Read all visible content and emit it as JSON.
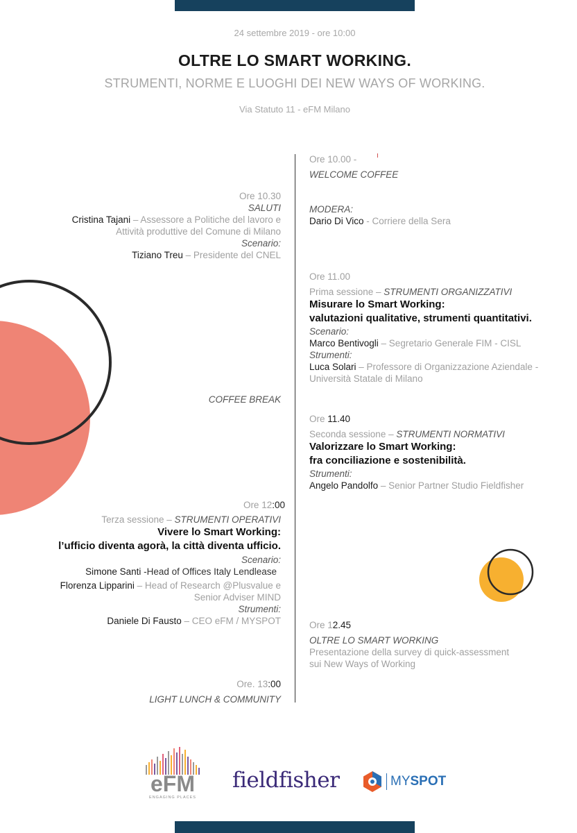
{
  "header": {
    "date_line": "24 settembre 2019 - ore 10:00",
    "title": "OLTRE LO SMART WORKING.",
    "subtitle": "STRUMENTI, NORME E LUOGHI DEI NEW WAYS OF WORKING.",
    "venue": "Via Statuto 11 - eFM Milano"
  },
  "colors": {
    "navy": "#16415d",
    "coral": "#ef8475",
    "orange": "#f7b030",
    "ring": "#2a2a2a"
  },
  "left": {
    "saluti": {
      "time": "Ore 10.30",
      "label": "SALUTI",
      "p1_name": "Cristina Tajani",
      "p1_role_a": " – Assessore a Politiche del lavoro e",
      "p1_role_b": "Attività produttive del Comune di Milano",
      "scenario_label": "Scenario:",
      "p2_name": "Tiziano Treu",
      "p2_role": " – Presidente del CNEL"
    },
    "coffee_break": "COFFEE BREAK",
    "s3": {
      "time_a": "Ore 12",
      "time_b": ":00",
      "session_a": "Terza sessione – ",
      "session_b": "STRUMENTI OPERATIVI",
      "heading_1": "Vivere lo Smart Working:",
      "heading_2": "l’ufficio diventa agorà, la città diventa ufficio.",
      "scenario_label": "Scenario:",
      "p1_name": "Simone Santi",
      "p1_role": " -Head of Offices Italy Lendlease",
      "p2_name": "Florenza Lipparini",
      "p2_role_a": " – Head of Research @Plusvalue e",
      "p2_role_b": "Senior Adviser MIND",
      "strumenti_label": "Strumenti:",
      "p3_name": "Daniele Di Fausto",
      "p3_role": " – CEO eFM / MYSPOT"
    },
    "lunch": {
      "time_a": "Ore. 13",
      "time_b": ":00",
      "label": "LIGHT LUNCH & COMMUNITY"
    }
  },
  "right": {
    "welcome": {
      "time": "Ore 10.00 -",
      "label": "WELCOME COFFEE"
    },
    "modera": {
      "label": "MODERA:",
      "name": "Dario Di Vico",
      "role": " - Corriere della Sera"
    },
    "s1": {
      "time": "Ore 11.00",
      "session_a": "Prima sessione – ",
      "session_b": "STRUMENTI ORGANIZZATIVI",
      "heading_1": "Misurare lo Smart Working:",
      "heading_2": "valutazioni qualitative, strumenti quantitativi.",
      "scenario_label": "Scenario:",
      "p1_name": "Marco Bentivogli",
      "p1_role": " – Segretario Generale FIM - CISL",
      "strumenti_label": "Strumenti:",
      "p2_name": "Luca Solari",
      "p2_role_a": " – Professore di Organizzazione Aziendale -",
      "p2_role_b": "Università Statale di Milano"
    },
    "s2": {
      "time_a": "Ore ",
      "time_b": "11.40",
      "session_a": "Seconda sessione – ",
      "session_b": "STRUMENTI NORMATIVI",
      "heading_1": "Valorizzare lo Smart Working:",
      "heading_2": "fra conciliazione e sostenibilità.",
      "strumenti_label": "Strumenti:",
      "p1_name": "Angelo Pandolfo",
      "p1_role": " – Senior Partner Studio Fieldfisher"
    },
    "closing": {
      "time_a": "Ore 1",
      "time_b": "2.45",
      "label": "OLTRE LO SMART WORKING",
      "desc_1": "Presentazione della survey di quick-assessment",
      "desc_2": "sui New Ways of Working"
    }
  },
  "logos": {
    "efm_main": "eFM",
    "efm_tag": "ENGAGING PLACES",
    "fieldfisher": "fieldfisher",
    "myspot_a": "MY",
    "myspot_b": "SPOT"
  }
}
